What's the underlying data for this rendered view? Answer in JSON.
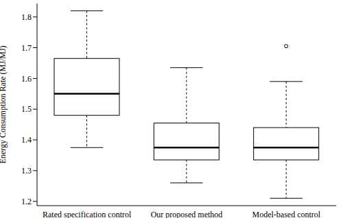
{
  "chart_data": {
    "type": "box",
    "y_label": "Energy Consumption Rate (MJ/MJ)",
    "categories": [
      "Rated specification control",
      "Our proposed method",
      "Model-based control"
    ],
    "boxes": [
      {
        "min": 1.375,
        "q1": 1.48,
        "median": 1.55,
        "q3": 1.665,
        "max": 1.82
      },
      {
        "min": 1.26,
        "q1": 1.335,
        "median": 1.375,
        "q3": 1.455,
        "max": 1.635
      },
      {
        "min": 1.21,
        "q1": 1.335,
        "median": 1.375,
        "q3": 1.44,
        "max": 1.59
      }
    ],
    "outliers": [
      [],
      [],
      [
        1.705
      ]
    ],
    "ylim": [
      1.186,
      1.844
    ],
    "yticks": [
      1.2,
      1.3,
      1.4,
      1.5,
      1.6,
      1.7,
      1.8
    ],
    "color": "#000000"
  }
}
